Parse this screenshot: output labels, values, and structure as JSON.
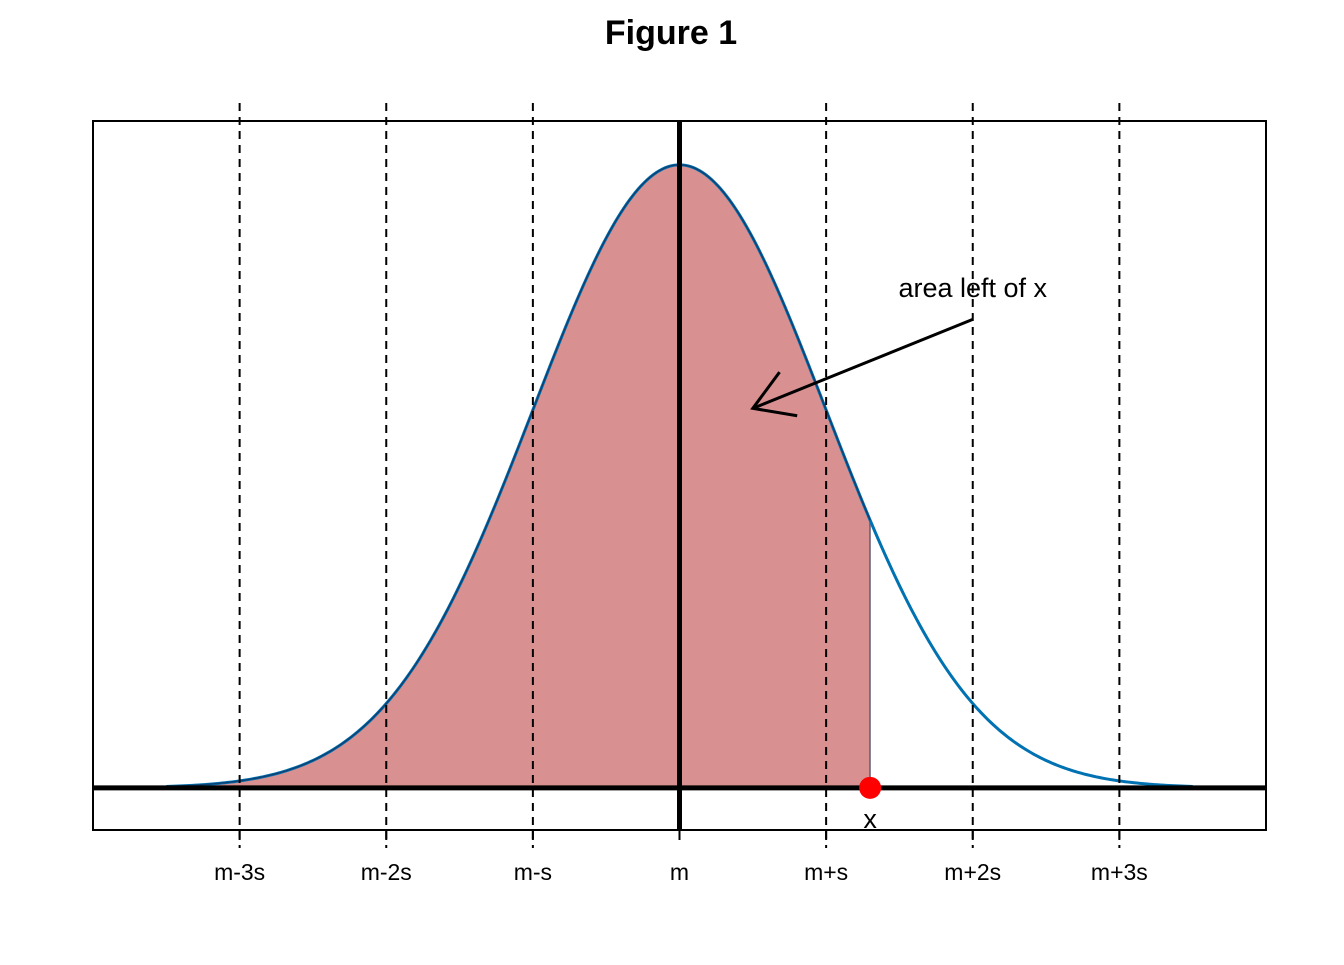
{
  "chart_data": {
    "type": "area",
    "title": "Figure 1",
    "xlabel": "",
    "ylabel": "",
    "xlim": [
      -4,
      4
    ],
    "ylim": [
      -0.027,
      0.427
    ],
    "curve": {
      "distribution": "standard normal density",
      "x_range": [
        -3.5,
        3.5
      ],
      "peak": 0.3989,
      "color": "#0072B2"
    },
    "shaded_area": {
      "from": -3.5,
      "to": 1.3,
      "color": "#D89090",
      "border": "#1a1a40"
    },
    "point": {
      "x": 1.3,
      "y": 0,
      "label": "x",
      "color": "#FF0000"
    },
    "vertical_lines": [
      {
        "x": -3,
        "label": "m-3s",
        "style": "dashed"
      },
      {
        "x": -2,
        "label": "m-2s",
        "style": "dashed"
      },
      {
        "x": -1,
        "label": "m-s",
        "style": "dashed"
      },
      {
        "x": 0,
        "label": "m",
        "style": "solid-thick"
      },
      {
        "x": 1,
        "label": "m+s",
        "style": "dashed"
      },
      {
        "x": 2,
        "label": "m+2s",
        "style": "dashed"
      },
      {
        "x": 3,
        "label": "m+3s",
        "style": "dashed"
      }
    ],
    "annotation": {
      "text": "area left of x",
      "text_x": 2.0,
      "text_y": 0.32,
      "arrow_from": [
        2.0,
        0.3
      ],
      "arrow_to": [
        0.5,
        0.243
      ]
    },
    "grid": false,
    "legend": "none"
  }
}
